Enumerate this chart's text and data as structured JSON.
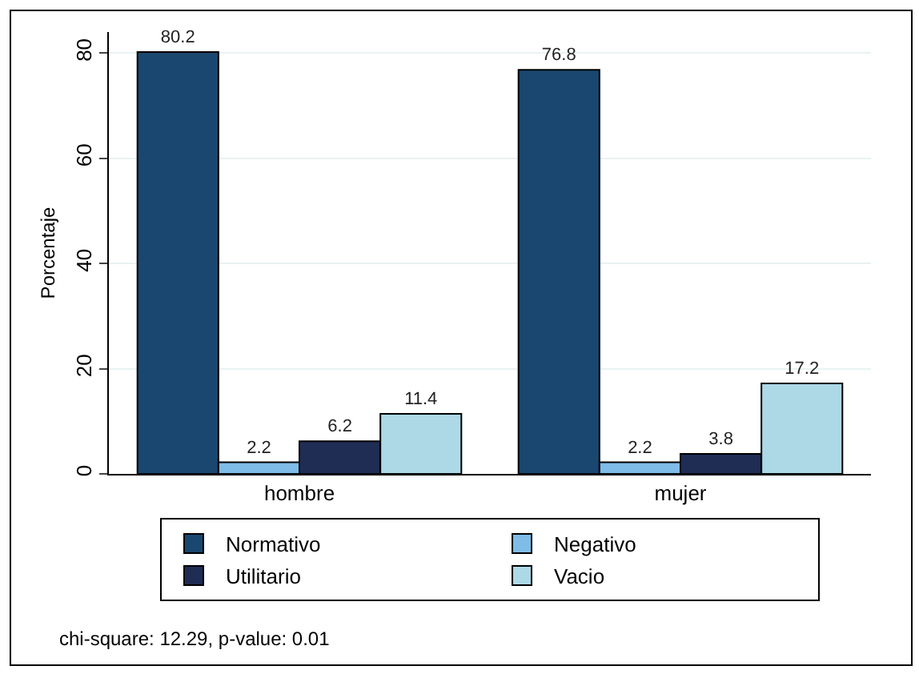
{
  "chart_data": {
    "type": "bar",
    "ylabel": "Porcentaje",
    "categories": [
      "hombre",
      "mujer"
    ],
    "series": [
      {
        "name": "Normativo",
        "color": "#1a476f",
        "values": [
          80.2,
          76.8
        ]
      },
      {
        "name": "Negativo",
        "color": "#7fbce8",
        "values": [
          2.2,
          2.2
        ]
      },
      {
        "name": "Utilitario",
        "color": "#1f2c54",
        "values": [
          6.2,
          3.8
        ]
      },
      {
        "name": "Vacio",
        "color": "#add8e6",
        "values": [
          11.4,
          17.2
        ]
      }
    ],
    "ylim": [
      0,
      84
    ],
    "yticks": [
      0,
      20,
      40,
      60,
      80
    ],
    "grid": "y",
    "legend": "bottom",
    "data_labels": true,
    "annotations": [
      "chi-square: 12.29, p-value: 0.01"
    ]
  }
}
